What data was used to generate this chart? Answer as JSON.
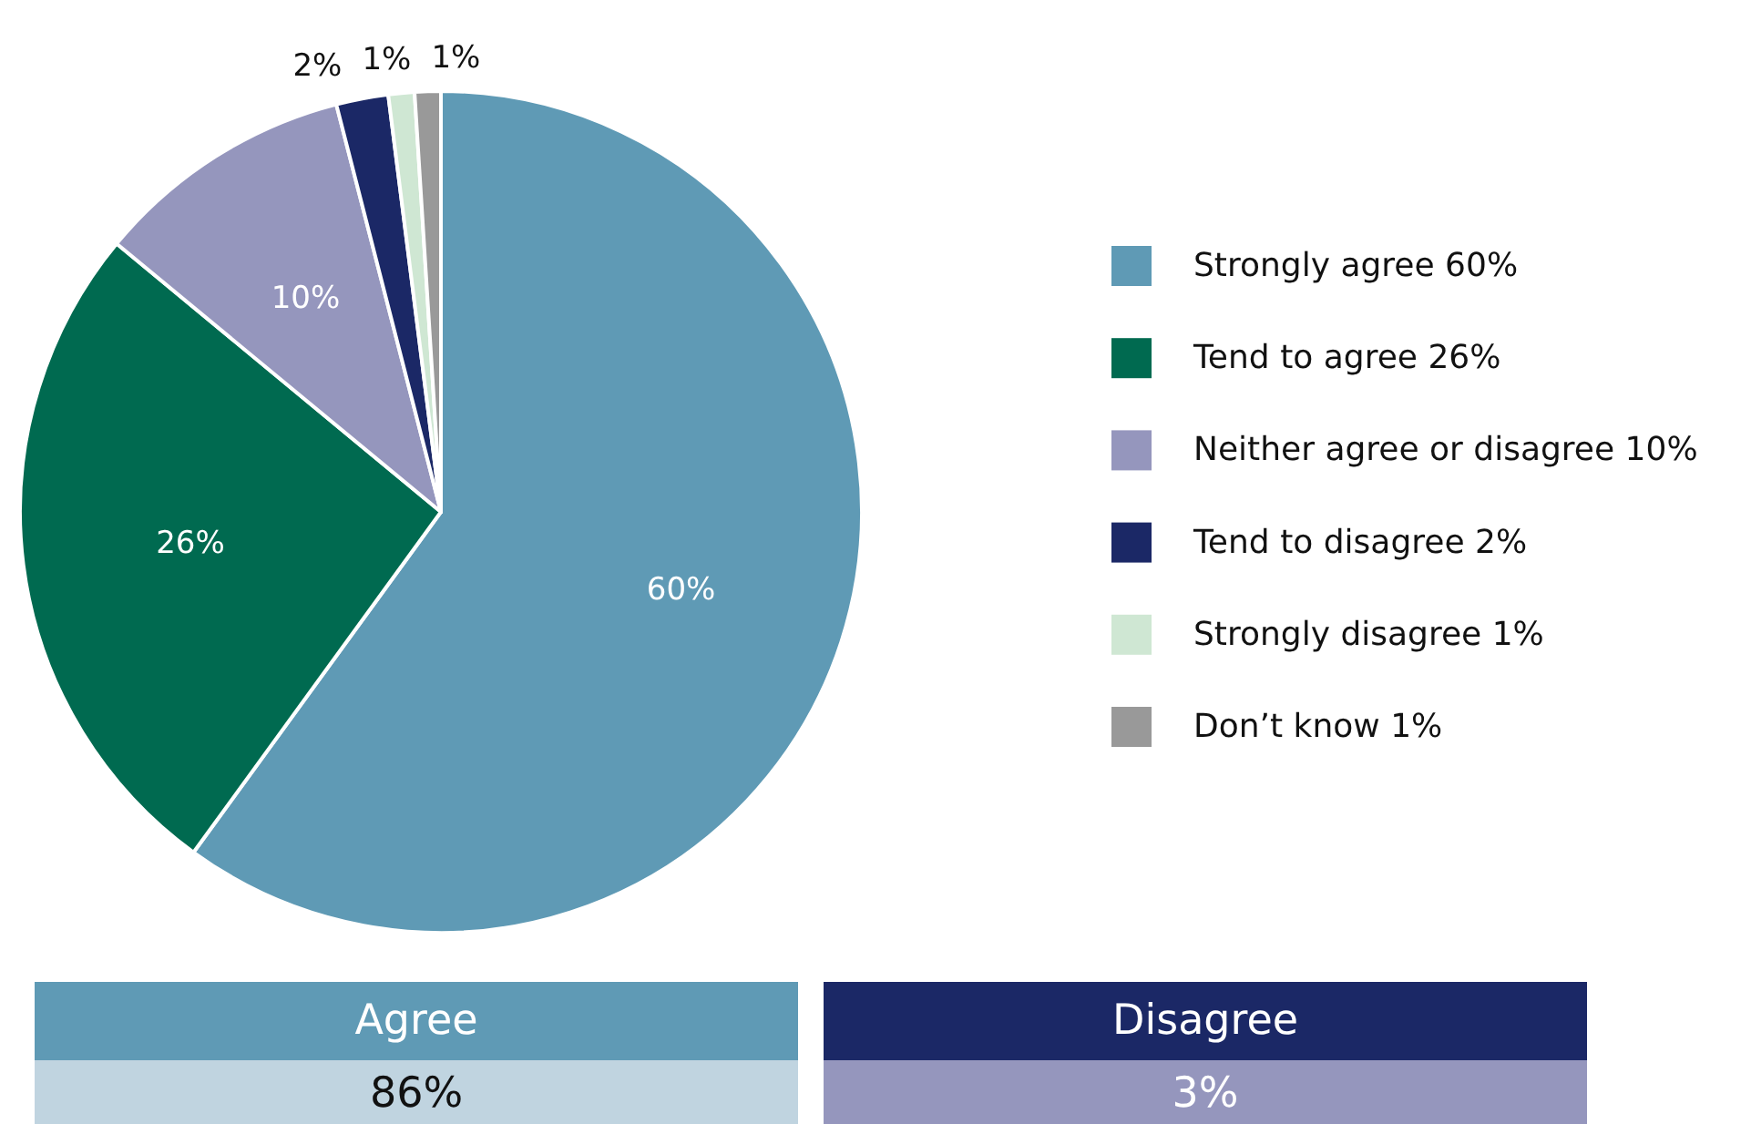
{
  "chart_data": [
    {
      "type": "pie",
      "categories": [
        "Strongly agree 60%",
        "Tend to agree 26%",
        "Neither agree or disagree 10%",
        "Tend to disagree 2%",
        "Strongly disagree 1%",
        "Don’t know 1%"
      ],
      "values": [
        60,
        26,
        10,
        2,
        1,
        1
      ],
      "value_labels": [
        "60%",
        "26%",
        "10%",
        "2%",
        "1%",
        "1%"
      ],
      "colors": [
        "#5f9ab5",
        "#006a50",
        "#9596bd",
        "#1b2866",
        "#cfe7d3",
        "#999999"
      ],
      "legend": "right"
    },
    {
      "type": "other",
      "categories": [
        "Agree",
        "Disagree"
      ],
      "values": [
        86,
        3
      ],
      "value_labels": [
        "86%",
        "3%"
      ]
    }
  ]
}
